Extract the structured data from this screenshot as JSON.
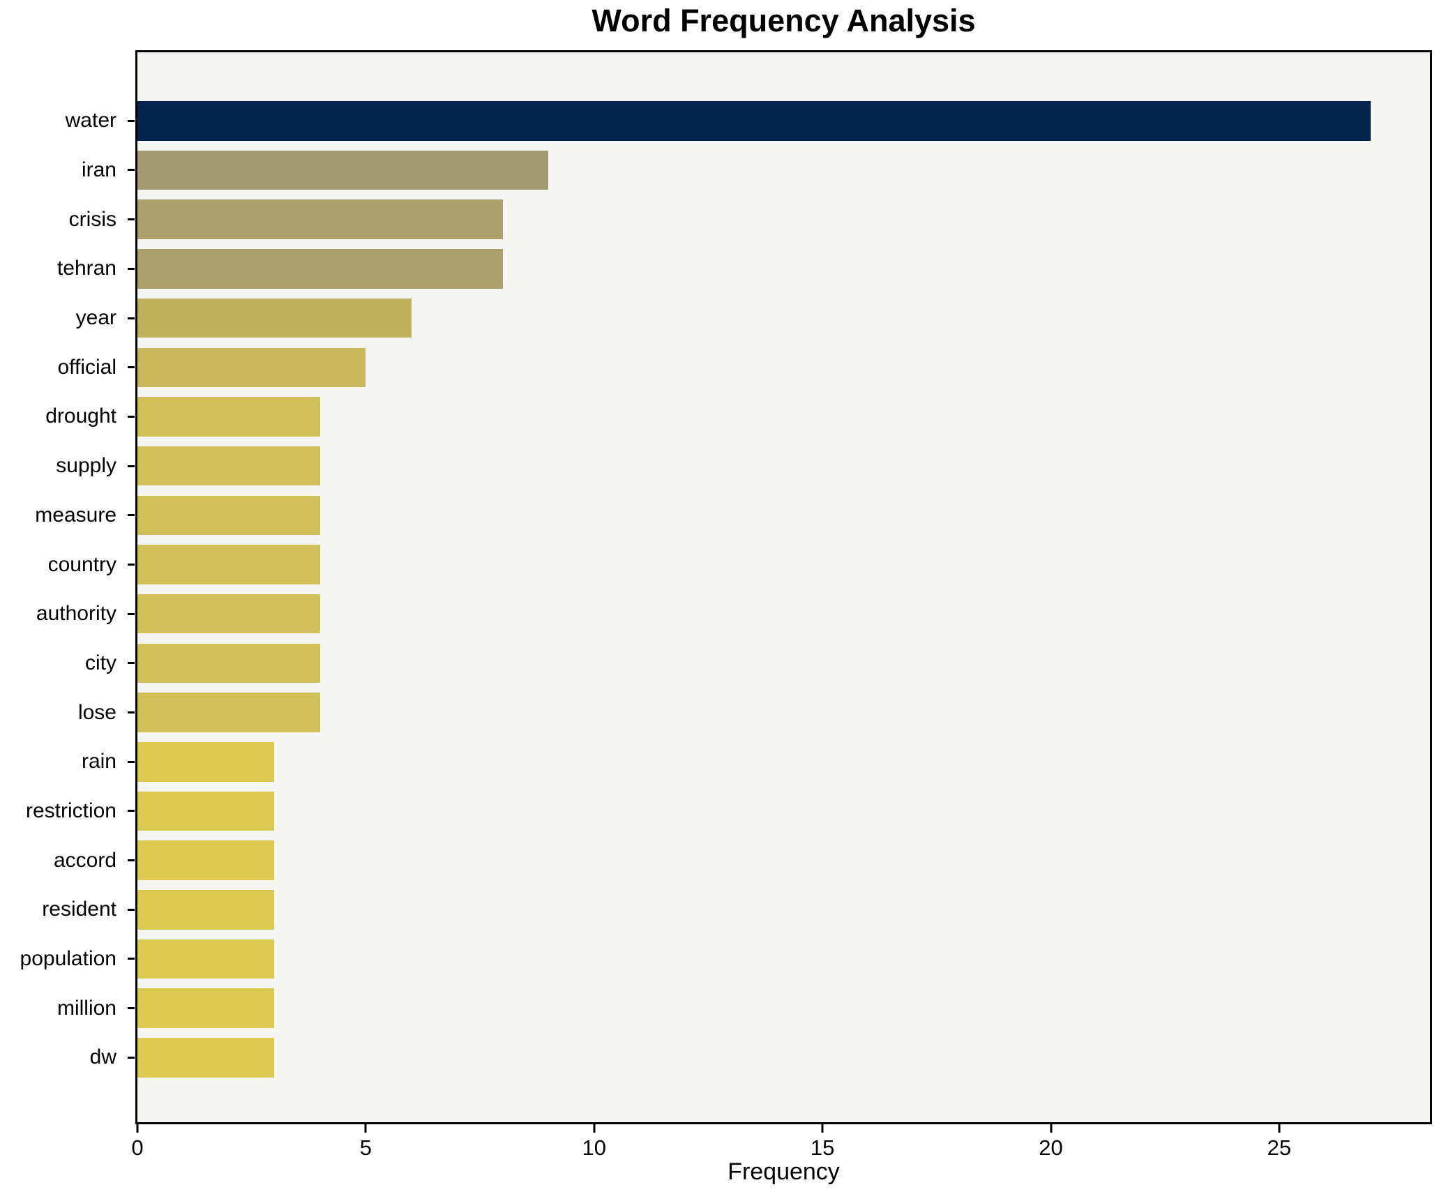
{
  "chart_data": {
    "type": "bar",
    "orientation": "horizontal",
    "title": "Word Frequency Analysis",
    "xlabel": "Frequency",
    "ylabel": "",
    "categories": [
      "water",
      "iran",
      "crisis",
      "tehran",
      "year",
      "official",
      "drought",
      "supply",
      "measure",
      "country",
      "authority",
      "city",
      "lose",
      "rain",
      "restriction",
      "accord",
      "resident",
      "population",
      "million",
      "dw"
    ],
    "values": [
      27,
      9,
      8,
      8,
      6,
      5,
      4,
      4,
      4,
      4,
      4,
      4,
      4,
      3,
      3,
      3,
      3,
      3,
      3,
      3
    ],
    "bar_colors": [
      "#04234e",
      "#a49c70",
      "#aba069",
      "#aba069",
      "#bfb05c",
      "#c9b85b",
      "#d2c158",
      "#d2c158",
      "#d2c158",
      "#d2c158",
      "#d2c158",
      "#d2c158",
      "#d2c158",
      "#dcc951",
      "#dcc951",
      "#dcc951",
      "#dcc951",
      "#dcc951",
      "#dcc951",
      "#dcc951"
    ],
    "xlim": [
      0,
      28.3
    ],
    "xticks": [
      0,
      5,
      10,
      15,
      20,
      25
    ],
    "xtick_labels": [
      "0",
      "5",
      "10",
      "15",
      "20",
      "25"
    ],
    "grid": false,
    "legend": null,
    "plot_bg": "#f5f5f3",
    "figure_bg": "#ffffff",
    "axis_color": "#000000"
  }
}
